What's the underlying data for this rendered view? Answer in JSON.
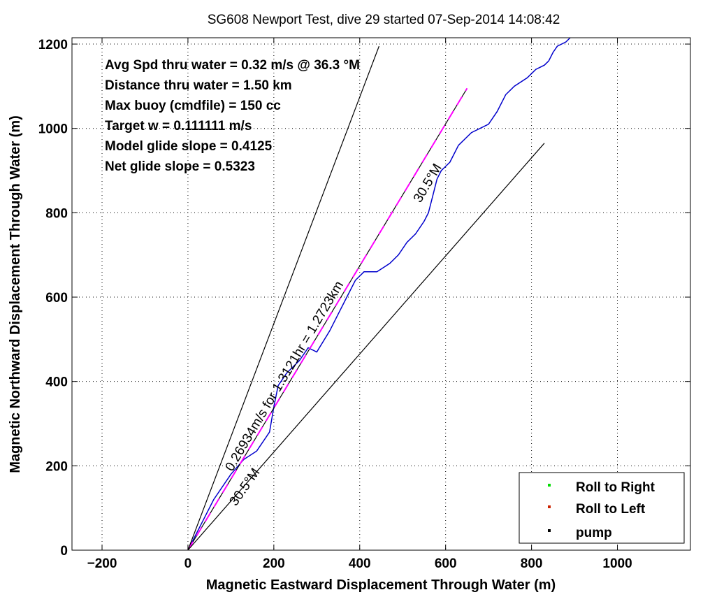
{
  "chart_data": {
    "type": "line",
    "title": "SG608 Newport Test, dive 29 started 07-Sep-2014 14:08:42",
    "xlabel": "Magnetic Eastward Displacement Through Water (m)",
    "ylabel": "Magnetic Northward Displacement Through Water (m)",
    "xlim": [
      -270,
      1170
    ],
    "ylim": [
      0,
      1215
    ],
    "xticks": [
      -200,
      0,
      200,
      400,
      600,
      800,
      1000
    ],
    "yticks": [
      0,
      200,
      400,
      600,
      800,
      1000,
      1200
    ],
    "grid": true,
    "legend_position": "bottom-right",
    "annotations": [
      "Avg Spd thru water  =  0.32 m/s @  36.3 °M",
      "Distance thru water =  1.50 km",
      "Max buoy (cmdfile)  = 150 cc",
      "Target w                  = 0.111111 m/s",
      "Model glide slope    = 0.4125",
      "Net glide slope         = 0.5323"
    ],
    "rotated_labels": {
      "speed_line": "0.26934m/s for 1.3121hr = 1.2723km",
      "right_bound": "30.5°M",
      "left_bound": "30.5°M"
    },
    "series": [
      {
        "name": "track",
        "color": "#0000cc",
        "x": [
          0,
          30,
          60,
          100,
          130,
          160,
          190,
          200,
          210,
          230,
          260,
          280,
          300,
          330,
          350,
          370,
          390,
          410,
          440,
          470,
          490,
          510,
          530,
          550,
          560,
          570,
          580,
          590,
          600,
          610,
          630,
          660,
          700,
          720,
          740,
          760,
          790,
          810,
          830,
          840,
          850,
          860,
          880,
          890
        ],
        "y": [
          0,
          60,
          120,
          180,
          215,
          235,
          280,
          340,
          390,
          420,
          450,
          480,
          470,
          520,
          560,
          600,
          640,
          660,
          660,
          680,
          700,
          730,
          750,
          780,
          800,
          840,
          880,
          900,
          910,
          920,
          960,
          990,
          1010,
          1040,
          1080,
          1100,
          1120,
          1140,
          1150,
          1160,
          1180,
          1195,
          1205,
          1215
        ]
      },
      {
        "name": "speed line",
        "color": "#000000",
        "dash_color": "#ff00ff",
        "x": [
          0,
          650
        ],
        "y": [
          0,
          1095
        ]
      },
      {
        "name": "left bound",
        "color": "#000000",
        "x": [
          0,
          445
        ],
        "y": [
          0,
          1195
        ]
      },
      {
        "name": "right bound",
        "color": "#000000",
        "x": [
          0,
          830
        ],
        "y": [
          0,
          965
        ]
      }
    ],
    "legend": [
      {
        "label": "Roll to Right",
        "color": "#00dd00"
      },
      {
        "label": "Roll to Left",
        "color": "#cc2200"
      },
      {
        "label": "pump",
        "color": "#000000"
      }
    ]
  }
}
